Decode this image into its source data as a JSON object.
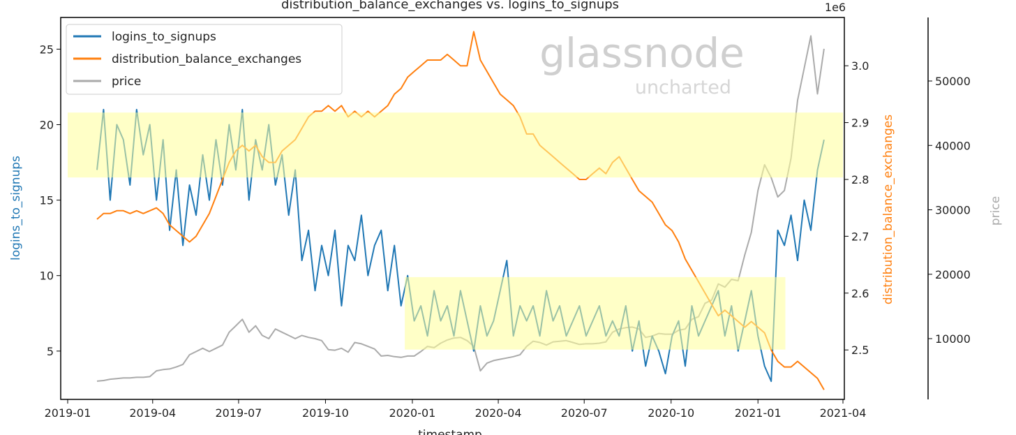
{
  "chart_data": {
    "type": "line",
    "title": "distribution_balance_exchanges vs. logins_to_signups",
    "xlabel": "timestamp",
    "x_start": "2019-02-01",
    "x_step_days": 7,
    "x_range": [
      "2019-01-01",
      "2021-04-01"
    ],
    "x_ticks": [
      "2019-01",
      "2019-04",
      "2019-07",
      "2019-10",
      "2020-01",
      "2020-04",
      "2020-07",
      "2020-10",
      "2021-01",
      "2021-04"
    ],
    "legend": {
      "placement": "upper-left",
      "entries": [
        "logins_to_signups",
        "distribution_balance_exchanges",
        "price"
      ]
    },
    "axes": {
      "left": {
        "label": "logins_to_signups",
        "ylim": [
          1.8,
          27.1
        ],
        "ticks": [
          5,
          10,
          15,
          20,
          25
        ],
        "color": "#1f77b4"
      },
      "right": {
        "label": "distribution_balance_exchanges",
        "ylim": [
          2.413,
          3.085
        ],
        "ticks": [
          "2.5",
          "2.6",
          "2.7",
          "2.8",
          "2.9",
          "3.0"
        ],
        "offset_label": "1e6",
        "color": "#ff7f0e"
      },
      "price": {
        "label": "price",
        "ylim": [
          570,
          59865
        ],
        "ticks": [
          10000,
          20000,
          30000,
          40000,
          50000
        ],
        "color": "#aaaaaa"
      }
    },
    "series": [
      {
        "name": "logins_to_signups",
        "axis": "left",
        "color": "#1f77b4",
        "values": [
          17,
          21,
          15,
          20,
          19,
          16,
          21,
          18,
          20,
          15,
          19,
          13,
          17,
          12,
          16,
          14,
          18,
          15,
          19,
          16,
          20,
          17,
          21,
          15,
          19,
          17,
          20,
          16,
          18,
          14,
          17,
          11,
          13,
          9,
          12,
          10,
          13,
          8,
          12,
          11,
          14,
          10,
          12,
          13,
          9,
          12,
          8,
          10,
          7,
          8,
          6,
          9,
          7,
          8,
          6,
          9,
          7,
          5,
          8,
          6,
          7,
          9,
          11,
          6,
          8,
          7,
          8,
          6,
          9,
          7,
          8,
          6,
          7,
          8,
          6,
          7,
          8,
          6,
          7,
          6,
          8,
          5,
          7,
          4,
          6,
          5,
          3.5,
          6,
          7,
          4,
          8,
          6,
          7,
          8,
          9,
          6,
          8,
          5,
          7,
          9,
          6,
          4,
          3,
          13,
          12,
          14,
          11,
          15,
          13,
          17,
          19
        ]
      },
      {
        "name": "distribution_balance_exchanges",
        "axis": "right",
        "color": "#ff7f0e",
        "values": [
          2.73,
          2.74,
          2.74,
          2.745,
          2.745,
          2.74,
          2.745,
          2.74,
          2.745,
          2.75,
          2.74,
          2.72,
          2.71,
          2.7,
          2.69,
          2.7,
          2.72,
          2.74,
          2.77,
          2.8,
          2.83,
          2.85,
          2.86,
          2.85,
          2.86,
          2.84,
          2.83,
          2.83,
          2.85,
          2.86,
          2.87,
          2.89,
          2.91,
          2.92,
          2.92,
          2.93,
          2.92,
          2.93,
          2.91,
          2.92,
          2.91,
          2.92,
          2.91,
          2.92,
          2.93,
          2.95,
          2.96,
          2.98,
          2.99,
          3.0,
          3.01,
          3.01,
          3.01,
          3.02,
          3.01,
          3.0,
          3.0,
          3.06,
          3.01,
          2.99,
          2.97,
          2.95,
          2.94,
          2.93,
          2.91,
          2.88,
          2.88,
          2.86,
          2.85,
          2.84,
          2.83,
          2.82,
          2.81,
          2.8,
          2.8,
          2.81,
          2.82,
          2.81,
          2.83,
          2.84,
          2.82,
          2.8,
          2.78,
          2.77,
          2.76,
          2.74,
          2.72,
          2.71,
          2.69,
          2.66,
          2.64,
          2.62,
          2.6,
          2.58,
          2.56,
          2.57,
          2.56,
          2.55,
          2.54,
          2.55,
          2.54,
          2.53,
          2.5,
          2.48,
          2.47,
          2.47,
          2.48,
          2.47,
          2.46,
          2.45,
          2.43
        ]
      },
      {
        "name": "price",
        "axis": "price",
        "color": "#aaaaaa",
        "values": [
          3400,
          3500,
          3700,
          3800,
          3900,
          3900,
          4000,
          4000,
          4100,
          5000,
          5200,
          5300,
          5600,
          6000,
          7500,
          8000,
          8500,
          8000,
          8500,
          9000,
          11000,
          12000,
          13000,
          11000,
          12000,
          10500,
          10000,
          11500,
          11000,
          10500,
          10000,
          10500,
          10200,
          10000,
          9700,
          8300,
          8200,
          8500,
          7900,
          9400,
          9200,
          8800,
          8400,
          7300,
          7400,
          7200,
          7100,
          7300,
          7300,
          8000,
          8800,
          8600,
          9300,
          9800,
          10100,
          10200,
          9700,
          8800,
          5000,
          6200,
          6600,
          6800,
          7000,
          7200,
          7500,
          8800,
          9600,
          9400,
          9000,
          9500,
          9600,
          9700,
          9400,
          9100,
          9200,
          9200,
          9300,
          9500,
          11000,
          11500,
          11700,
          11800,
          11500,
          10200,
          10400,
          10800,
          10700,
          10700,
          11300,
          11500,
          13000,
          13400,
          15500,
          16000,
          18500,
          18000,
          19200,
          19000,
          23000,
          26500,
          33000,
          37000,
          35000,
          32000,
          33000,
          38000,
          47000,
          52000,
          57000,
          48000,
          55000
        ]
      }
    ],
    "highlight_bands": [
      {
        "x_from": "2019-01-01",
        "x_to": "2021-04-01",
        "y_from": 16.5,
        "y_to": 20.8,
        "axis": "left",
        "color": "#ffff99"
      },
      {
        "x_from": "2019-12-24",
        "x_to": "2021-01-30",
        "y_from": 5.1,
        "y_to": 9.9,
        "axis": "left",
        "color": "#ffff99"
      }
    ]
  },
  "watermark": {
    "brand": "glassnode",
    "sub": "uncharted"
  }
}
